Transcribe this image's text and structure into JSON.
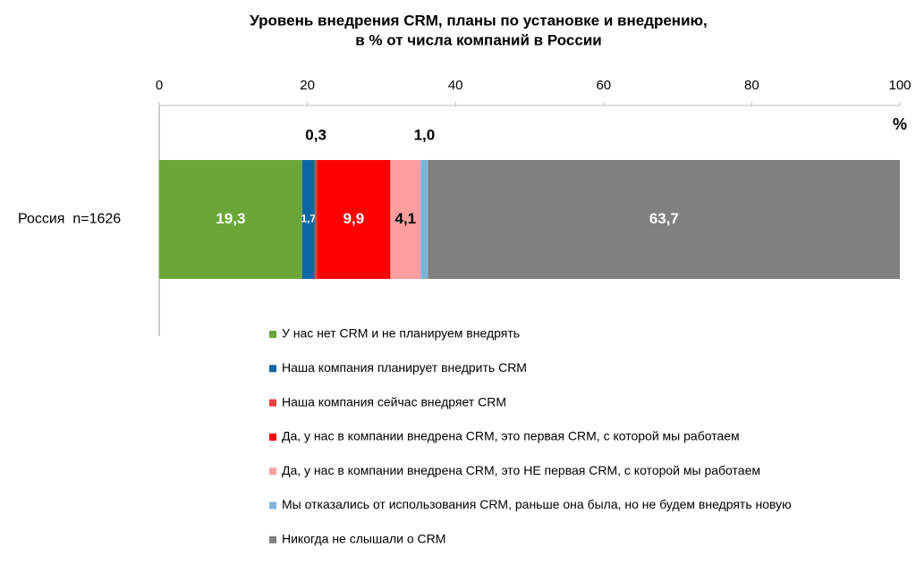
{
  "chart_data": {
    "type": "stacked-barh",
    "title": [
      "Уровень внедрения CRM, планы по установке и внедрению,",
      "в % от числа компаний в России"
    ],
    "x_label": "%",
    "categories": [
      "Россия  n=1626"
    ],
    "series": [
      {
        "name": "У нас нет CRM и не планируем внедрять",
        "color": "#6aa738",
        "values": [
          19.3
        ],
        "value_labels": [
          "19,3"
        ]
      },
      {
        "name": "Наша компания планирует внедрить CRM",
        "color": "#0b66a3",
        "values": [
          1.7
        ],
        "value_labels": [
          "1,7"
        ]
      },
      {
        "name": "Наша компания сейчас внедряет CRM",
        "color": "#e8403f",
        "values": [
          0.3
        ],
        "value_labels": [
          "0,3"
        ]
      },
      {
        "name": "Да, у нас в компании внедрена CRM, это первая CRM, с которой мы работаем",
        "color": "#ff0000",
        "values": [
          9.9
        ],
        "value_labels": [
          "9,9"
        ]
      },
      {
        "name": "Да, у нас в компании внедрена CRM, это НЕ первая CRM, с которой мы работаем",
        "color": "#ff9e9e",
        "values": [
          4.1
        ],
        "value_labels": [
          "4,1"
        ]
      },
      {
        "name": "Мы отказались от использования CRM, раньше она была, но не будем внедрять новую",
        "color": "#7fb3d9",
        "values": [
          1.0
        ],
        "value_labels": [
          "1,0"
        ]
      },
      {
        "name": "Никогда не слышали о CRM",
        "color": "#808080",
        "values": [
          63.7
        ],
        "value_labels": [
          "63,7"
        ]
      }
    ],
    "xlim": [
      0,
      100
    ],
    "xticks": [
      0,
      20,
      40,
      60,
      80,
      100
    ]
  }
}
